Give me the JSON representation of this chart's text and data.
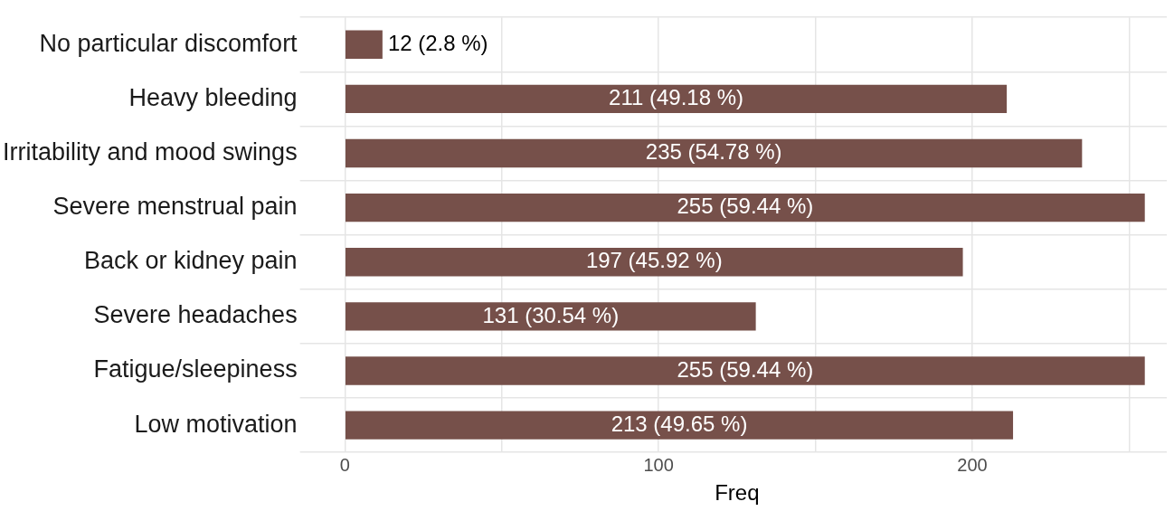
{
  "chart_data": {
    "type": "bar",
    "orientation": "horizontal",
    "xlabel": "Freq",
    "categories": [
      "No particular discomfort",
      "Heavy bleeding",
      "Irritability and mood swings",
      "Severe menstrual pain",
      "Back or kidney pain",
      "Severe headaches",
      "Fatigue/sleepiness",
      "Low motivation"
    ],
    "values": [
      12,
      211,
      235,
      255,
      197,
      131,
      255,
      213
    ],
    "value_labels": [
      "12 (2.8 %)",
      "211 (49.18 %)",
      "235 (54.78 %)",
      "255 (59.44 %)",
      "197 (45.92 %)",
      "131 (30.54 %)",
      "255 (59.44 %)",
      "213 (49.65 %)"
    ],
    "color": "#76504a",
    "xlim": [
      -12,
      262
    ],
    "xticks": [
      0,
      {
        "value": 50,
        "label": null
      },
      100,
      {
        "value": 150,
        "label": null
      },
      200,
      {
        "value": 250,
        "label": null
      }
    ],
    "grid": true,
    "legend": false
  }
}
